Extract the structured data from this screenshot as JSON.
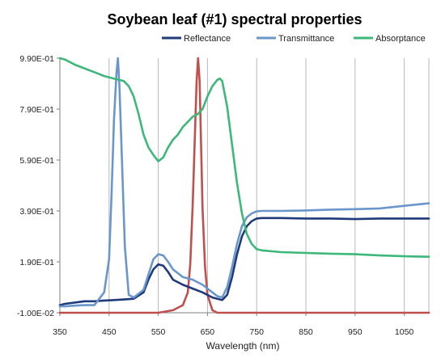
{
  "chart_data": {
    "type": "line",
    "title": "Soybean leaf (#1) spectral properties",
    "xlabel": "Wavelength (nm)",
    "ylabel": "",
    "xlim": [
      350,
      1100
    ],
    "ylim": [
      -0.01,
      0.99
    ],
    "x_ticks": [
      350,
      450,
      550,
      650,
      750,
      850,
      950,
      1050
    ],
    "x_tick_labels": [
      "350",
      "450",
      "550",
      "650",
      "750",
      "850",
      "950",
      "1050"
    ],
    "y_ticks": [
      -0.01,
      0.19,
      0.39,
      0.59,
      0.79,
      0.99
    ],
    "y_tick_labels": [
      "-1.00E-02",
      "1.90E-01",
      "3.90E-01",
      "5.90E-01",
      "7.90E-01",
      "9.90E-01"
    ],
    "grid": "vertical",
    "legend_position": "top",
    "series": [
      {
        "name": "Reflectance",
        "color": "#1f3a7a",
        "x": [
          350,
          360,
          380,
          400,
          420,
          440,
          460,
          480,
          500,
          520,
          530,
          540,
          550,
          560,
          570,
          580,
          600,
          620,
          640,
          660,
          670,
          680,
          690,
          700,
          710,
          720,
          730,
          740,
          750,
          760,
          800,
          850,
          900,
          950,
          1000,
          1050,
          1100
        ],
        "y": [
          0.02,
          0.025,
          0.03,
          0.035,
          0.035,
          0.038,
          0.04,
          0.042,
          0.045,
          0.07,
          0.12,
          0.16,
          0.18,
          0.175,
          0.15,
          0.12,
          0.1,
          0.085,
          0.07,
          0.05,
          0.045,
          0.04,
          0.06,
          0.13,
          0.22,
          0.29,
          0.33,
          0.35,
          0.36,
          0.362,
          0.362,
          0.36,
          0.36,
          0.358,
          0.36,
          0.36,
          0.36
        ]
      },
      {
        "name": "Transmittance",
        "color": "#6b96cb",
        "x": [
          350,
          360,
          380,
          400,
          420,
          440,
          450,
          455,
          460,
          465,
          468,
          471,
          476,
          482,
          490,
          500,
          520,
          530,
          540,
          550,
          560,
          570,
          580,
          600,
          620,
          640,
          660,
          670,
          680,
          690,
          700,
          710,
          720,
          730,
          740,
          750,
          760,
          800,
          850,
          900,
          950,
          1000,
          1050,
          1100
        ],
        "y": [
          0.015,
          0.015,
          0.018,
          0.02,
          0.02,
          0.07,
          0.2,
          0.45,
          0.75,
          0.93,
          0.99,
          0.88,
          0.6,
          0.25,
          0.06,
          0.05,
          0.08,
          0.14,
          0.2,
          0.22,
          0.215,
          0.19,
          0.16,
          0.13,
          0.12,
          0.1,
          0.07,
          0.055,
          0.05,
          0.09,
          0.17,
          0.26,
          0.33,
          0.365,
          0.38,
          0.388,
          0.39,
          0.39,
          0.392,
          0.395,
          0.397,
          0.4,
          0.41,
          0.42
        ]
      },
      {
        "name": "Absorptance",
        "color": "#3db87a",
        "x": [
          350,
          360,
          370,
          380,
          400,
          420,
          440,
          460,
          480,
          490,
          500,
          510,
          520,
          530,
          540,
          550,
          560,
          570,
          580,
          590,
          600,
          610,
          620,
          630,
          640,
          650,
          660,
          670,
          675,
          680,
          690,
          700,
          710,
          720,
          730,
          740,
          750,
          760,
          800,
          850,
          900,
          950,
          1000,
          1050,
          1100
        ],
        "y": [
          0.99,
          0.985,
          0.975,
          0.965,
          0.95,
          0.935,
          0.92,
          0.91,
          0.9,
          0.88,
          0.84,
          0.77,
          0.69,
          0.64,
          0.61,
          0.585,
          0.6,
          0.64,
          0.67,
          0.69,
          0.72,
          0.74,
          0.76,
          0.77,
          0.79,
          0.84,
          0.88,
          0.905,
          0.91,
          0.9,
          0.8,
          0.65,
          0.5,
          0.38,
          0.3,
          0.26,
          0.24,
          0.235,
          0.228,
          0.225,
          0.222,
          0.22,
          0.215,
          0.212,
          0.21
        ]
      },
      {
        "name": "",
        "color": "#c0504d",
        "x": [
          350,
          400,
          500,
          550,
          580,
          600,
          610,
          615,
          620,
          625,
          628,
          631,
          634,
          637,
          640,
          645,
          650,
          660,
          670,
          700,
          800,
          900,
          1000,
          1100
        ],
        "y": [
          -0.01,
          -0.01,
          -0.01,
          -0.01,
          0.0,
          0.02,
          0.07,
          0.18,
          0.42,
          0.72,
          0.9,
          0.99,
          0.9,
          0.65,
          0.4,
          0.17,
          0.06,
          0.0,
          -0.01,
          -0.01,
          -0.01,
          -0.01,
          -0.01,
          -0.01
        ]
      }
    ]
  }
}
